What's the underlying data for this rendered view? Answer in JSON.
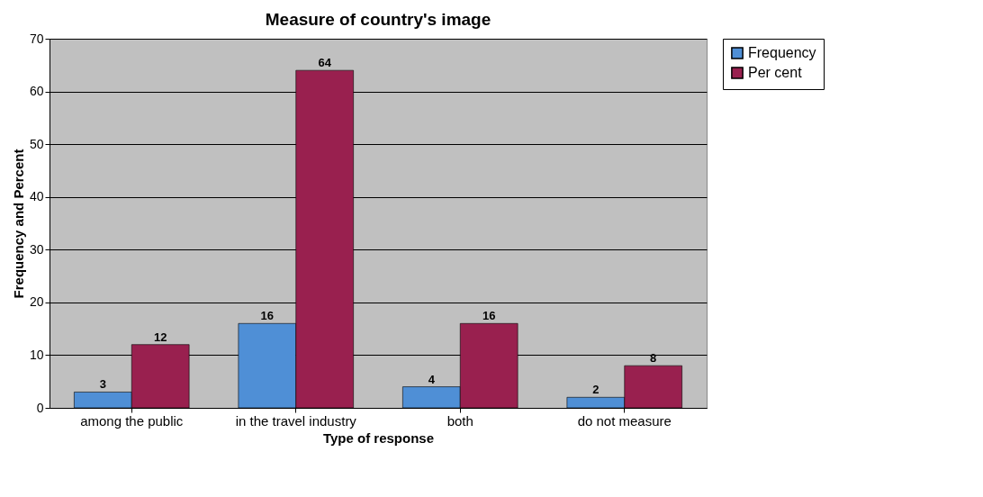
{
  "chart_data": {
    "type": "bar",
    "title": "Measure of country's image",
    "xlabel": "Type of response",
    "ylabel": "Frequency and Percent",
    "categories": [
      "among the public",
      "in the travel industry",
      "both",
      "do not measure"
    ],
    "series": [
      {
        "name": "Frequency",
        "color": "#4f8fd6",
        "values": [
          3,
          16,
          4,
          2
        ]
      },
      {
        "name": "Per cent",
        "color": "#99204f",
        "values": [
          12,
          64,
          16,
          8
        ]
      }
    ],
    "ylim": [
      0,
      70
    ],
    "yticks": [
      0,
      10,
      20,
      30,
      40,
      50,
      60,
      70
    ],
    "grid": "y",
    "legend": "right",
    "data_labels": true
  }
}
